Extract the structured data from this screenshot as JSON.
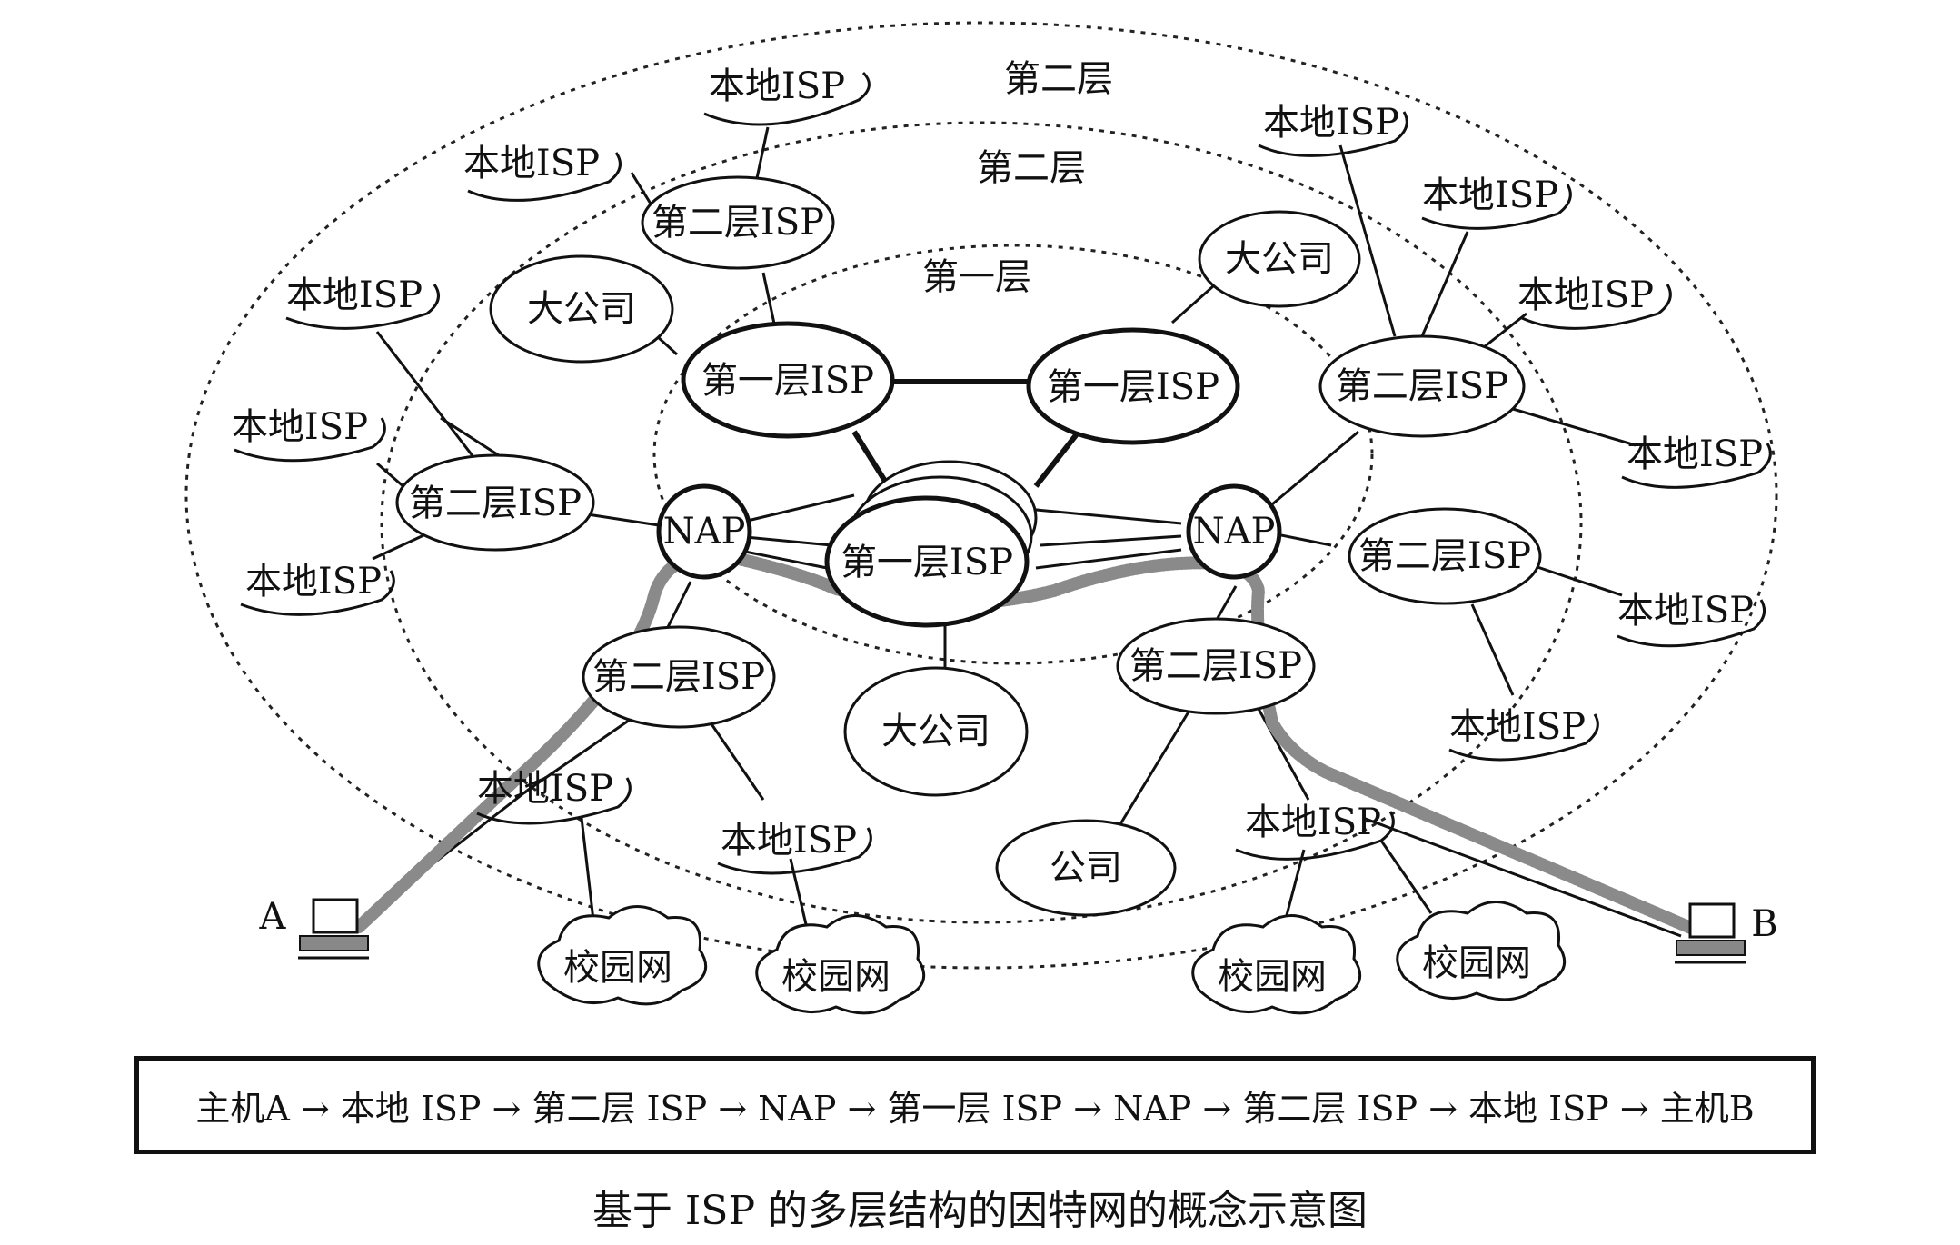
{
  "rings": {
    "outer": "第二层",
    "middle": "第二层",
    "inner": "第一层"
  },
  "nodes": {
    "tier1_isp": "第一层ISP",
    "tier2_isp": "第二层ISP",
    "local_isp": "本地ISP",
    "nap": "NAP",
    "big_company": "大公司",
    "company": "公司",
    "campus": "校园网"
  },
  "hosts": {
    "a": "A",
    "b": "B"
  },
  "route": "主机A → 本地 ISP → 第二层 ISP → NAP → 第一层 ISP → NAP → 第二层 ISP → 本地 ISP → 主机B",
  "caption": "基于 ISP 的多层结构的因特网的概念示意图",
  "colors": {
    "line": "#111111",
    "path": "#8a8a8a"
  }
}
